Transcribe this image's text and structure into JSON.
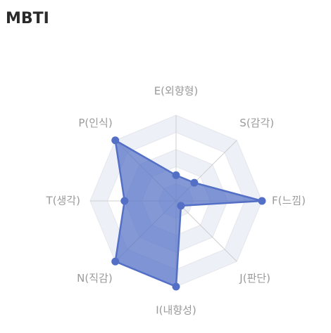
{
  "header": {
    "title": "MBTI"
  },
  "colors": {
    "series_fill": "#5470c6",
    "series_stroke": "#5470c6",
    "grid_line": "#e4e6ec",
    "band_fill": "#eef0f7",
    "axis_line": "#cfcfcf",
    "label": "#9a9a9a"
  },
  "chart_data": {
    "type": "radar",
    "title": "MBTI",
    "axes": [
      "E(외향형)",
      "S(감각)",
      "F(느낌)",
      "J(판단)",
      "I(내향성)",
      "N(직감)",
      "T(생각)",
      "P(인식)"
    ],
    "range": [
      0,
      100
    ],
    "grid_levels": 5,
    "series": [
      {
        "values": [
          30,
          30,
          100,
          8,
          100,
          100,
          60,
          100
        ]
      }
    ]
  }
}
